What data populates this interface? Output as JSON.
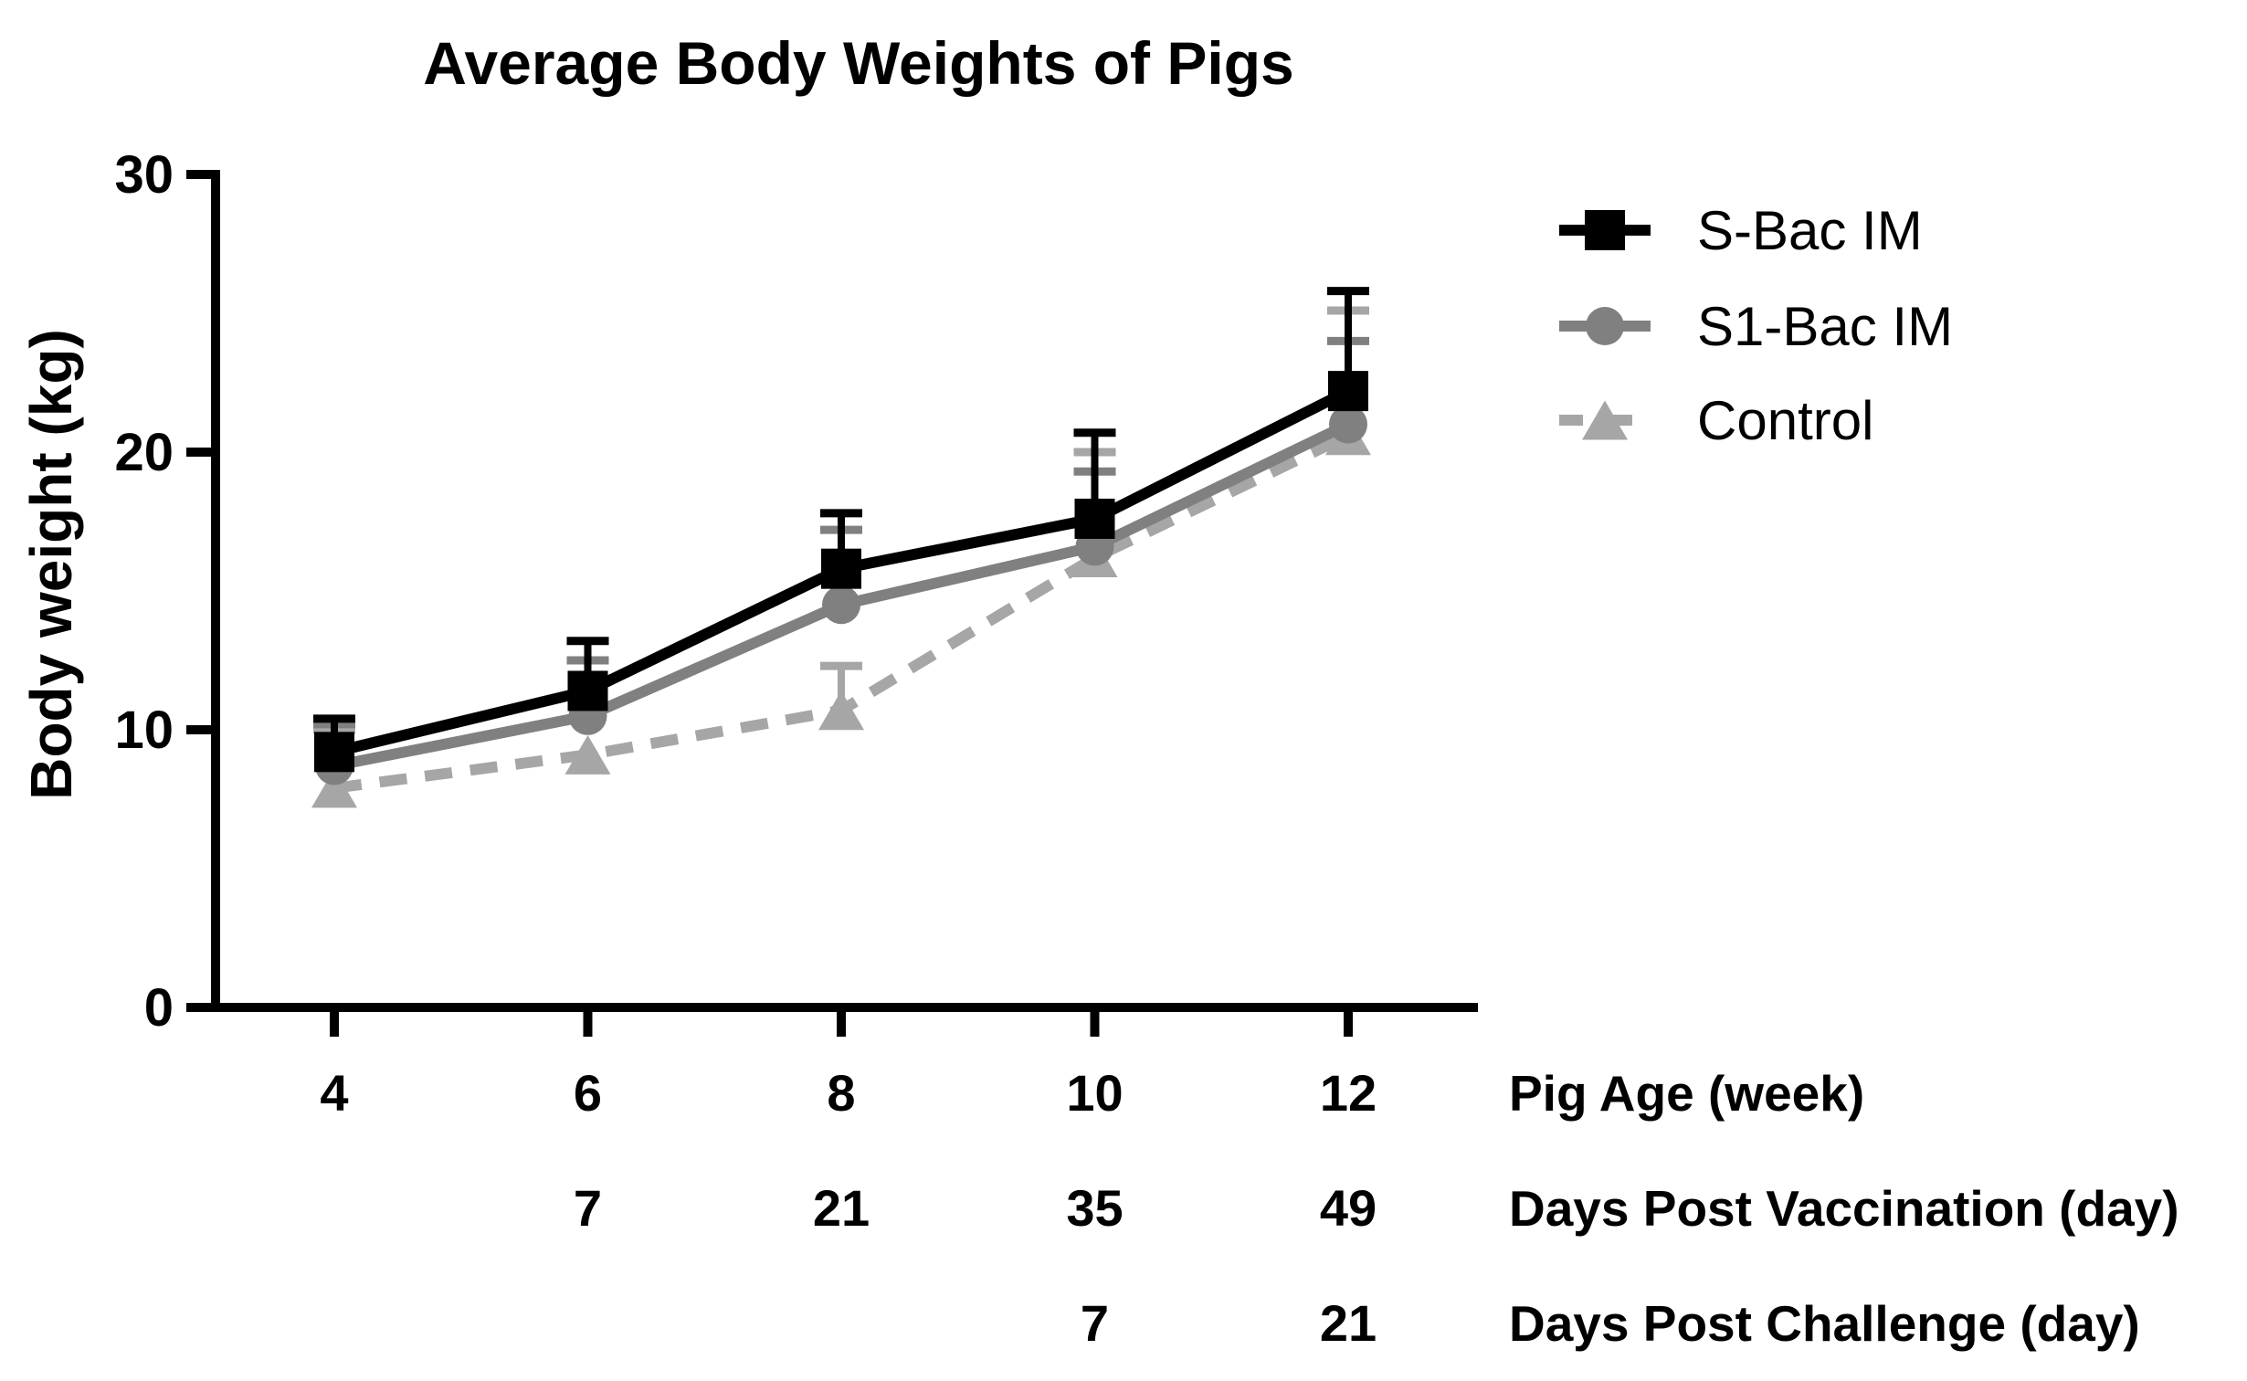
{
  "title": "Average Body Weights of Pigs",
  "chart_data": {
    "type": "line",
    "title": "Average Body Weights of Pigs",
    "ylabel": "Body weight (kg)",
    "ylim": [
      0,
      30
    ],
    "yticks": [
      "0",
      "10",
      "20",
      "30"
    ],
    "axis_color": "#000000",
    "grid": false,
    "legend_position": "right",
    "x_weeks": [
      "4",
      "6",
      "8",
      "10",
      "12"
    ],
    "x_axis_rows": [
      {
        "label": "Pig Age (week)",
        "values": [
          "4",
          "6",
          "8",
          "10",
          "12"
        ]
      },
      {
        "label": "Days Post Vaccination (day)",
        "values": [
          null,
          "7",
          "21",
          "35",
          "49"
        ]
      },
      {
        "label": "Days Post Challenge (day)",
        "values": [
          null,
          null,
          null,
          "7",
          "21"
        ]
      }
    ],
    "series": [
      {
        "name": "S-Bac IM",
        "marker": "square",
        "line": "solid",
        "color": "#000000",
        "values": [
          9.2,
          11.4,
          15.8,
          17.6,
          22.2
        ],
        "err_up": [
          1.2,
          1.8,
          2.0,
          3.1,
          3.6
        ]
      },
      {
        "name": "S1-Bac IM",
        "marker": "circle",
        "line": "solid",
        "color": "#808080",
        "values": [
          8.7,
          10.5,
          14.5,
          16.6,
          21.0
        ],
        "err_up": [
          1.5,
          2.0,
          2.7,
          2.7,
          3.0
        ]
      },
      {
        "name": "Control",
        "marker": "triangle",
        "line": "dashed",
        "color": "#a6a6a6",
        "values": [
          7.9,
          9.1,
          10.7,
          16.2,
          20.6
        ],
        "err_up": [
          2.1,
          null,
          1.6,
          3.8,
          4.5
        ]
      }
    ]
  }
}
